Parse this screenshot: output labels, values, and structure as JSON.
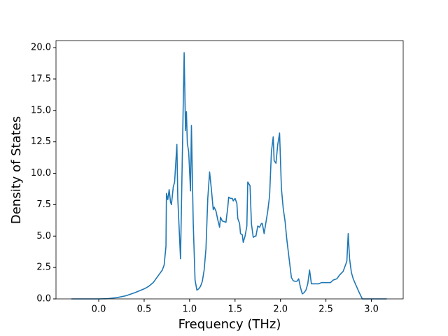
{
  "chart_data": {
    "type": "line",
    "x_label": "Frequency (THz)",
    "y_label": "Density of States",
    "x": [
      -0.3,
      0,
      0.1,
      0.2,
      0.3,
      0.4,
      0.5,
      0.55,
      0.6,
      0.65,
      0.68,
      0.7,
      0.72,
      0.74,
      0.745,
      0.76,
      0.775,
      0.79,
      0.8,
      0.82,
      0.835,
      0.86,
      0.87,
      0.9,
      0.94,
      0.955,
      0.965,
      0.975,
      0.99,
      1.01,
      1.02,
      1.04,
      1.06,
      1.08,
      1.1,
      1.12,
      1.14,
      1.16,
      1.18,
      1.2,
      1.22,
      1.24,
      1.26,
      1.27,
      1.29,
      1.31,
      1.33,
      1.34,
      1.36,
      1.4,
      1.42,
      1.43,
      1.45,
      1.47,
      1.48,
      1.5,
      1.52,
      1.53,
      1.55,
      1.56,
      1.58,
      1.59,
      1.61,
      1.63,
      1.64,
      1.665,
      1.68,
      1.7,
      1.72,
      1.73,
      1.75,
      1.77,
      1.79,
      1.8,
      1.82,
      1.84,
      1.86,
      1.88,
      1.9,
      1.92,
      1.93,
      1.95,
      1.97,
      1.99,
      2.01,
      2.03,
      2.05,
      2.07,
      2.09,
      2.11,
      2.12,
      2.14,
      2.16,
      2.18,
      2.2,
      2.22,
      2.24,
      2.26,
      2.28,
      2.3,
      2.32,
      2.34,
      2.38,
      2.42,
      2.45,
      2.5,
      2.55,
      2.58,
      2.62,
      2.65,
      2.69,
      2.71,
      2.73,
      2.745,
      2.76,
      2.78,
      2.8,
      2.83,
      2.86,
      2.88,
      2.9,
      3.0,
      3.17
    ],
    "series": [
      {
        "color": "#1f77b4",
        "values": [
          0,
          0,
          0.02,
          0.1,
          0.25,
          0.5,
          0.8,
          1.0,
          1.3,
          1.8,
          2.1,
          2.3,
          2.7,
          4.2,
          8.4,
          7.9,
          8.7,
          7.7,
          7.5,
          8.9,
          9.3,
          12.3,
          8,
          3.2,
          19.6,
          13.4,
          14.9,
          12.4,
          11.7,
          8.6,
          13.8,
          6,
          1.5,
          0.7,
          0.8,
          1.0,
          1.4,
          2.3,
          4.0,
          8,
          10.1,
          8.7,
          7.1,
          7.3,
          7.0,
          6.3,
          5.7,
          6.5,
          6.2,
          6.1,
          7.3,
          8.1,
          8.0,
          8.0,
          7.8,
          8.0,
          7.6,
          6.4,
          6.0,
          5.2,
          5.1,
          4.5,
          5.0,
          5.8,
          9.3,
          9.0,
          6.0,
          4.9,
          5.0,
          5.0,
          5.8,
          5.7,
          6.0,
          6.0,
          5.2,
          6.1,
          7.0,
          8.2,
          11.7,
          12.9,
          11.0,
          10.8,
          12.3,
          13.2,
          8.8,
          7.2,
          6.2,
          4.7,
          3.5,
          2.3,
          1.7,
          1.45,
          1.4,
          1.4,
          1.6,
          0.9,
          0.4,
          0.5,
          0.7,
          1.2,
          2.3,
          1.2,
          1.2,
          1.2,
          1.3,
          1.3,
          1.3,
          1.5,
          1.6,
          1.9,
          2.2,
          2.6,
          3.0,
          5.2,
          3.2,
          2.1,
          1.6,
          1.1,
          0.6,
          0.3,
          0,
          0,
          0
        ]
      }
    ],
    "xlim": [
      -0.47,
      3.35
    ],
    "ylim": [
      0,
      20.56
    ],
    "xticks": [
      {
        "value": 0,
        "label": "0.0"
      },
      0.5,
      {
        "value": 1,
        "label": "1.0"
      },
      1.5,
      {
        "value": 2,
        "label": "2.0"
      },
      2.5,
      {
        "value": 3,
        "label": "3.0"
      }
    ],
    "yticks": [
      {
        "value": 0,
        "label": "0.0"
      },
      2.5,
      {
        "value": 5,
        "label": "5.0"
      },
      7.5,
      {
        "value": 10,
        "label": "10.0"
      },
      12.5,
      {
        "value": 15,
        "label": "15.0"
      },
      17.5,
      {
        "value": 20,
        "label": "20.0"
      }
    ],
    "grid": false
  }
}
